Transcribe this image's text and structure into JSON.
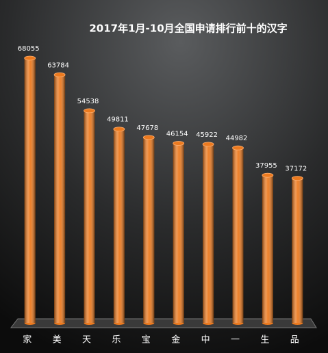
{
  "chart_data": {
    "type": "bar",
    "title": "2017年1月-10月全国申请排行前十的汉字",
    "categories": [
      "家",
      "美",
      "天",
      "乐",
      "宝",
      "金",
      "中",
      "一",
      "生",
      "品"
    ],
    "values": [
      68055,
      63784,
      54538,
      49811,
      47678,
      46154,
      45922,
      44982,
      37955,
      37172
    ],
    "color": "#ec7a1f"
  }
}
